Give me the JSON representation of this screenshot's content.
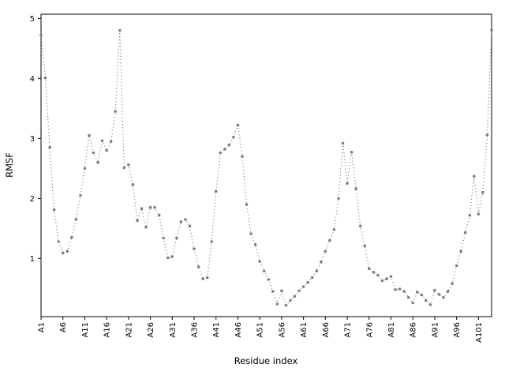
{
  "figure": {
    "background": "#ffffff",
    "axes_box_color": "#000000",
    "series_color": "#7f7f7f"
  },
  "chart_data": {
    "type": "line",
    "title": "",
    "xlabel": "Residue index",
    "ylabel": "RMSF",
    "line_style": "dotted",
    "marker": "circle",
    "legend": "none",
    "grid": false,
    "color": "#7f7f7f",
    "xlim": [
      1,
      104
    ],
    "ylim": [
      0.03,
      5.07
    ],
    "y_ticks": [
      1,
      2,
      3,
      4,
      5
    ],
    "x_tick_positions": [
      1,
      6,
      11,
      16,
      21,
      26,
      31,
      36,
      41,
      46,
      51,
      56,
      61,
      66,
      71,
      76,
      81,
      86,
      91,
      96,
      101
    ],
    "x_tick_labels": [
      "A1",
      "A6",
      "A11",
      "A16",
      "A21",
      "A26",
      "A31",
      "A36",
      "A41",
      "A46",
      "A51",
      "A56",
      "A61",
      "A66",
      "A71",
      "A76",
      "A81",
      "A86",
      "A91",
      "A96",
      "A101"
    ],
    "x_tick_label_rotation_deg": 90,
    "series": [
      {
        "name": "RMSF",
        "residue_prefix": "A",
        "x_start": 1,
        "x_step": 1,
        "values": [
          4.72,
          4.01,
          2.85,
          1.81,
          1.28,
          1.09,
          1.12,
          1.35,
          1.65,
          2.05,
          2.5,
          3.05,
          2.76,
          2.6,
          2.96,
          2.8,
          2.95,
          3.45,
          4.8,
          2.51,
          2.56,
          2.23,
          1.63,
          1.83,
          1.52,
          1.85,
          1.85,
          1.72,
          1.34,
          1.01,
          1.03,
          1.34,
          1.61,
          1.65,
          1.54,
          1.16,
          0.86,
          0.66,
          0.68,
          1.28,
          2.12,
          2.76,
          2.82,
          2.89,
          3.02,
          3.22,
          2.7,
          1.9,
          1.41,
          1.23,
          0.95,
          0.79,
          0.65,
          0.45,
          0.24,
          0.46,
          0.22,
          0.3,
          0.37,
          0.46,
          0.53,
          0.6,
          0.68,
          0.79,
          0.94,
          1.12,
          1.3,
          1.48,
          2.0,
          2.92,
          2.25,
          2.77,
          2.16,
          1.54,
          1.21,
          0.83,
          0.77,
          0.72,
          0.63,
          0.66,
          0.7,
          0.48,
          0.49,
          0.45,
          0.35,
          0.26,
          0.44,
          0.39,
          0.3,
          0.23,
          0.47,
          0.4,
          0.35,
          0.45,
          0.58,
          0.88,
          1.12,
          1.43,
          1.72,
          2.37,
          1.74,
          2.1,
          3.06,
          4.81
        ]
      }
    ]
  }
}
